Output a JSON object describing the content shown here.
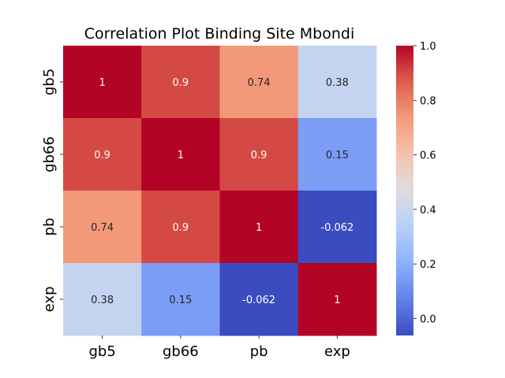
{
  "chart_data": {
    "type": "heatmap",
    "title": "Correlation Plot Binding Site Mbondi",
    "x_labels": [
      "gb5",
      "gb66",
      "pb",
      "exp"
    ],
    "y_labels": [
      "gb5",
      "gb66",
      "pb",
      "exp"
    ],
    "values": [
      [
        1,
        0.9,
        0.74,
        0.38
      ],
      [
        0.9,
        1,
        0.9,
        0.15
      ],
      [
        0.74,
        0.9,
        1,
        -0.062
      ],
      [
        0.38,
        0.15,
        -0.062,
        1
      ]
    ],
    "annotations": [
      [
        "1",
        "0.9",
        "0.74",
        "0.38"
      ],
      [
        "0.9",
        "1",
        "0.9",
        "0.15"
      ],
      [
        "0.74",
        "0.9",
        "1",
        "-0.062"
      ],
      [
        "0.38",
        "0.15",
        "-0.062",
        "1"
      ]
    ],
    "colormap": "coolwarm",
    "colorbar": {
      "range": [
        -0.062,
        1.0
      ],
      "ticks": [
        0.0,
        0.2,
        0.4,
        0.6,
        0.8,
        1.0
      ],
      "tick_labels": [
        "0.0",
        "0.2",
        "0.4",
        "0.6",
        "0.8",
        "1.0"
      ]
    }
  }
}
